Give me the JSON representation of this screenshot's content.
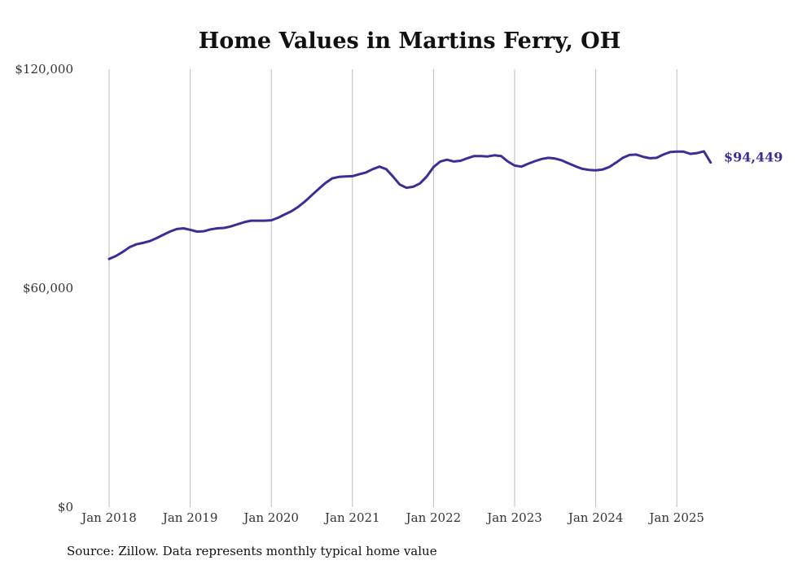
{
  "chart_data": {
    "type": "line",
    "title": "Home Values in Martins Ferry, OH",
    "xlabel": "",
    "ylabel": "",
    "ylim": [
      0,
      120000
    ],
    "y_ticks": [
      {
        "value": 0,
        "label": "$0"
      },
      {
        "value": 60000,
        "label": "$60,000"
      },
      {
        "value": 120000,
        "label": "$120,000"
      }
    ],
    "x_ticks": [
      {
        "value": "2018-01",
        "label": "Jan 2018"
      },
      {
        "value": "2019-01",
        "label": "Jan 2019"
      },
      {
        "value": "2020-01",
        "label": "Jan 2020"
      },
      {
        "value": "2021-01",
        "label": "Jan 2021"
      },
      {
        "value": "2022-01",
        "label": "Jan 2022"
      },
      {
        "value": "2023-01",
        "label": "Jan 2023"
      },
      {
        "value": "2024-01",
        "label": "Jan 2024"
      },
      {
        "value": "2025-01",
        "label": "Jan 2025"
      }
    ],
    "grid": {
      "vertical": true,
      "horizontal": false
    },
    "line_color": "#3b2f97",
    "series": [
      {
        "name": "",
        "x": [
          "2018-01",
          "2018-02",
          "2018-03",
          "2018-04",
          "2018-05",
          "2018-06",
          "2018-07",
          "2018-08",
          "2018-09",
          "2018-10",
          "2018-11",
          "2018-12",
          "2019-01",
          "2019-02",
          "2019-03",
          "2019-04",
          "2019-05",
          "2019-06",
          "2019-07",
          "2019-08",
          "2019-09",
          "2019-10",
          "2019-11",
          "2019-12",
          "2020-01",
          "2020-02",
          "2020-03",
          "2020-04",
          "2020-05",
          "2020-06",
          "2020-07",
          "2020-08",
          "2020-09",
          "2020-10",
          "2020-11",
          "2020-12",
          "2021-01",
          "2021-02",
          "2021-03",
          "2021-04",
          "2021-05",
          "2021-06",
          "2021-07",
          "2021-08",
          "2021-09",
          "2021-10",
          "2021-11",
          "2021-12",
          "2022-01",
          "2022-02",
          "2022-03",
          "2022-04",
          "2022-05",
          "2022-06",
          "2022-07",
          "2022-08",
          "2022-09",
          "2022-10",
          "2022-11",
          "2022-12",
          "2023-01",
          "2023-02",
          "2023-03",
          "2023-04",
          "2023-05",
          "2023-06",
          "2023-07",
          "2023-08",
          "2023-09",
          "2023-10",
          "2023-11",
          "2023-12",
          "2024-01",
          "2024-02",
          "2024-03",
          "2024-04",
          "2024-05",
          "2024-06",
          "2024-07",
          "2024-08",
          "2024-09",
          "2024-10",
          "2024-11",
          "2024-12",
          "2025-01",
          "2025-02",
          "2025-03",
          "2025-04",
          "2025-05",
          "2025-06"
        ],
        "values": [
          68000,
          68800,
          69900,
          71200,
          72000,
          72400,
          72900,
          73700,
          74600,
          75500,
          76200,
          76400,
          76000,
          75500,
          75600,
          76100,
          76400,
          76500,
          76900,
          77500,
          78100,
          78500,
          78500,
          78500,
          78600,
          79300,
          80200,
          81100,
          82300,
          83800,
          85500,
          87200,
          88800,
          90100,
          90500,
          90600,
          90700,
          91200,
          91700,
          92600,
          93300,
          92600,
          90600,
          88400,
          87500,
          87800,
          88700,
          90600,
          93200,
          94700,
          95200,
          94700,
          94900,
          95600,
          96200,
          96200,
          96100,
          96400,
          96200,
          94700,
          93600,
          93300,
          94100,
          94800,
          95400,
          95700,
          95500,
          95000,
          94200,
          93400,
          92700,
          92400,
          92300,
          92500,
          93200,
          94400,
          95700,
          96500,
          96600,
          96000,
          95600,
          95700,
          96600,
          97300,
          97400,
          97400,
          96800,
          97000,
          97500,
          94449
        ]
      }
    ],
    "end_label": "$94,449"
  },
  "source": "Source: Zillow. Data represents monthly typical home value"
}
